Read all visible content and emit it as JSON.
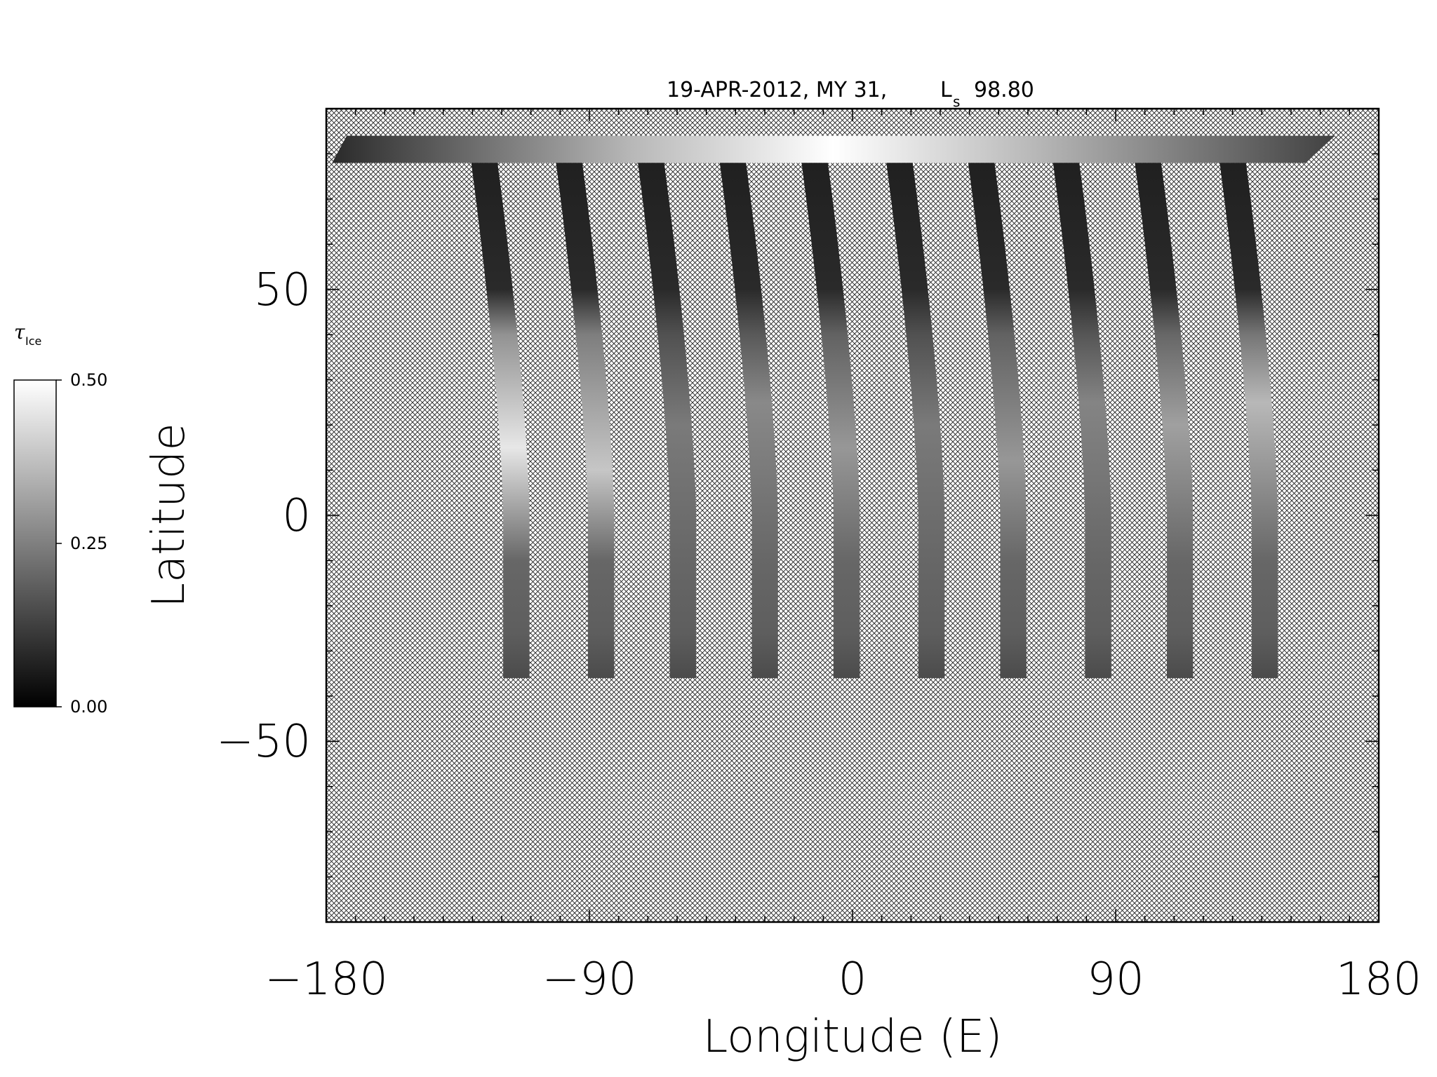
{
  "chart_data": {
    "type": "heatmap",
    "title": "19-APR-2012, MY 31,",
    "title_ls_symbol": "L",
    "title_ls_sub": "s",
    "title_ls_value": "98.80",
    "xlabel": "Longitude (E)",
    "ylabel": "Latitude",
    "xlim": [
      -180,
      180
    ],
    "ylim": [
      -90,
      90
    ],
    "x_ticks": [
      -180,
      -90,
      0,
      90,
      180
    ],
    "x_tick_labels": [
      "−180",
      "−90",
      "0",
      "90",
      "180"
    ],
    "y_ticks": [
      -50,
      0,
      50
    ],
    "y_tick_labels": [
      "−50",
      "0",
      "50"
    ],
    "grid": false,
    "missing_data_fill": "cross-hatch",
    "colormap": "grayscale",
    "colorbar": {
      "symbol": "τ",
      "subscript": "Ice",
      "range": [
        0.0,
        0.5
      ],
      "ticks": [
        0.0,
        0.25,
        0.5
      ],
      "tick_labels": [
        "0.00",
        "0.25",
        "0.50"
      ],
      "placement": "left"
    },
    "swaths": [
      {
        "lon_at_equator": -115,
        "lat_min": -36,
        "lat_max": 78,
        "peak_tau": 0.45,
        "peak_lat": 15
      },
      {
        "lon_at_equator": -86,
        "lat_min": -36,
        "lat_max": 78,
        "peak_tau": 0.38,
        "peak_lat": 10
      },
      {
        "lon_at_equator": -58,
        "lat_min": -36,
        "lat_max": 78,
        "peak_tau": 0.22,
        "peak_lat": 20
      },
      {
        "lon_at_equator": -30,
        "lat_min": -36,
        "lat_max": 78,
        "peak_tau": 0.25,
        "peak_lat": 25
      },
      {
        "lon_at_equator": -2,
        "lat_min": -36,
        "lat_max": 78,
        "peak_tau": 0.28,
        "peak_lat": 15
      },
      {
        "lon_at_equator": 27,
        "lat_min": -36,
        "lat_max": 78,
        "peak_tau": 0.22,
        "peak_lat": 20
      },
      {
        "lon_at_equator": 55,
        "lat_min": -36,
        "lat_max": 78,
        "peak_tau": 0.28,
        "peak_lat": 12
      },
      {
        "lon_at_equator": 84,
        "lat_min": -36,
        "lat_max": 78,
        "peak_tau": 0.24,
        "peak_lat": 25
      },
      {
        "lon_at_equator": 112,
        "lat_min": -36,
        "lat_max": 78,
        "peak_tau": 0.3,
        "peak_lat": 20
      },
      {
        "lon_at_equator": 141,
        "lat_min": -36,
        "lat_max": 78,
        "peak_tau": 0.35,
        "peak_lat": 25
      }
    ],
    "polar_cap": {
      "lat_min": 78,
      "lat_max": 84,
      "lon_min": -178,
      "lon_max": 165,
      "peak_tau": 0.5
    }
  }
}
